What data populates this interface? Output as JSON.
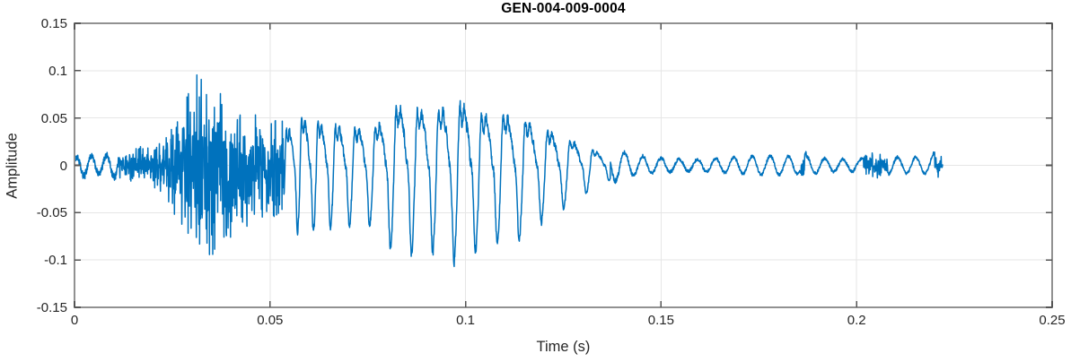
{
  "chart_data": {
    "type": "line",
    "title": "GEN-004-009-0004",
    "xlabel": "Time (s)",
    "ylabel": "Amplitude",
    "xlim": [
      0,
      0.25
    ],
    "ylim": [
      -0.15,
      0.15
    ],
    "grid": true,
    "legend": false,
    "xticks": [
      {
        "v": 0,
        "label": "0"
      },
      {
        "v": 0.05,
        "label": "0.05"
      },
      {
        "v": 0.1,
        "label": "0.1"
      },
      {
        "v": 0.15,
        "label": "0.15"
      },
      {
        "v": 0.2,
        "label": "0.2"
      },
      {
        "v": 0.25,
        "label": "0.25"
      }
    ],
    "yticks": [
      {
        "v": -0.15,
        "label": "-0.15"
      },
      {
        "v": -0.1,
        "label": "-0.1"
      },
      {
        "v": -0.05,
        "label": "-0.05"
      },
      {
        "v": 0,
        "label": "0"
      },
      {
        "v": 0.05,
        "label": "0.05"
      },
      {
        "v": 0.1,
        "label": "0.1"
      },
      {
        "v": 0.15,
        "label": "0.15"
      }
    ],
    "line_color": "#0072BD",
    "signal": {
      "kind": "speech-waveform",
      "duration_s": 0.222,
      "peak_amplitude": 0.108,
      "min_amplitude": -0.106,
      "envelope": [
        [
          0.0,
          0.007
        ],
        [
          0.002,
          0.012
        ],
        [
          0.005,
          0.009
        ],
        [
          0.009,
          0.011
        ],
        [
          0.013,
          0.016
        ],
        [
          0.017,
          0.02
        ],
        [
          0.021,
          0.026
        ],
        [
          0.024,
          0.042
        ],
        [
          0.027,
          0.065
        ],
        [
          0.03,
          0.092
        ],
        [
          0.033,
          0.106
        ],
        [
          0.0355,
          0.098
        ],
        [
          0.038,
          0.085
        ],
        [
          0.041,
          0.078
        ],
        [
          0.044,
          0.068
        ],
        [
          0.047,
          0.06
        ],
        [
          0.05,
          0.052
        ],
        [
          0.0535,
          0.06
        ],
        [
          0.0558,
          0.066
        ],
        [
          0.058,
          0.08
        ],
        [
          0.062,
          0.073
        ],
        [
          0.067,
          0.069
        ],
        [
          0.072,
          0.064
        ],
        [
          0.077,
          0.068
        ],
        [
          0.083,
          0.102
        ],
        [
          0.088,
          0.094
        ],
        [
          0.093,
          0.096
        ],
        [
          0.0985,
          0.11
        ],
        [
          0.104,
          0.088
        ],
        [
          0.109,
          0.089
        ],
        [
          0.115,
          0.079
        ],
        [
          0.119,
          0.064
        ],
        [
          0.123,
          0.056
        ],
        [
          0.127,
          0.043
        ],
        [
          0.131,
          0.031
        ],
        [
          0.1345,
          0.022
        ],
        [
          0.138,
          0.014
        ],
        [
          0.143,
          0.01
        ],
        [
          0.15,
          0.009
        ],
        [
          0.165,
          0.008
        ],
        [
          0.179,
          0.008
        ],
        [
          0.1855,
          0.008
        ],
        [
          0.1862,
          0.028
        ],
        [
          0.1872,
          0.009
        ],
        [
          0.195,
          0.008
        ],
        [
          0.2015,
          0.009
        ],
        [
          0.2025,
          0.016
        ],
        [
          0.207,
          0.015
        ],
        [
          0.2085,
          0.009
        ],
        [
          0.212,
          0.008
        ],
        [
          0.218,
          0.007
        ],
        [
          0.2208,
          0.013
        ],
        [
          0.222,
          0.009
        ]
      ],
      "noise_regions": [
        [
          0.0115,
          0.0535
        ],
        [
          0.1858,
          0.1868
        ],
        [
          0.2018,
          0.208
        ],
        [
          0.22,
          0.222
        ]
      ],
      "voiced": {
        "t0": 0.0535,
        "t1": 0.137,
        "f0_hz": [
          [
            0.0535,
            265
          ],
          [
            0.062,
            235
          ],
          [
            0.07,
            197
          ],
          [
            0.08,
            186
          ],
          [
            0.1,
            182
          ],
          [
            0.137,
            170
          ]
        ]
      },
      "lead_tone_hz": 260,
      "ripple_hz": 215
    }
  },
  "style": {
    "background": "#ffffff",
    "axis_color": "#919191",
    "grid_color": "#e6e6e6",
    "tick_color": "#555555",
    "tick_label_color": "#262626",
    "axis_label_color": "#262626",
    "title_color": "#000000"
  }
}
